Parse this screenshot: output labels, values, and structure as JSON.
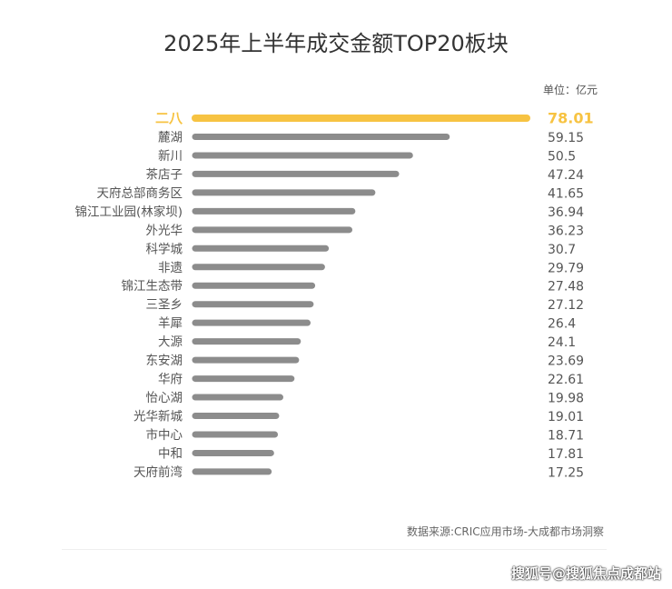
{
  "chart_data": {
    "type": "bar",
    "orientation": "horizontal",
    "title": "2025年上半年成交金额TOP20板块",
    "unit_label": "单位：亿元",
    "categories": [
      "二八",
      "麓湖",
      "新川",
      "茶店子",
      "天府总部商务区",
      "锦江工业园(林家坝)",
      "外光华",
      "科学城",
      "非遗",
      "锦江生态带",
      "三圣乡",
      "羊犀",
      "大源",
      "东安湖",
      "华府",
      "怡心湖",
      "光华新城",
      "市中心",
      "中和",
      "天府前湾"
    ],
    "values": [
      78.01,
      59.15,
      50.5,
      47.24,
      41.65,
      36.94,
      36.23,
      30.7,
      29.79,
      27.48,
      27.12,
      26.4,
      24.1,
      23.69,
      22.61,
      19.98,
      19.01,
      18.71,
      17.81,
      17.25
    ],
    "value_labels": [
      "78.01",
      "59.15",
      "50.5",
      "47.24",
      "41.65",
      "36.94",
      "36.23",
      "30.7",
      "29.79",
      "27.48",
      "27.12",
      "26.4",
      "24.1",
      "23.69",
      "22.61",
      "19.98",
      "19.01",
      "18.71",
      "17.81",
      "17.25"
    ],
    "highlight_index": 0,
    "colors": {
      "highlight": "#F7C342",
      "bar": "#8C8C8C",
      "label": "#555555"
    },
    "grid": false,
    "source": "数据来源:CRIC应用市场-大成都市场洞察"
  },
  "watermark": "搜狐号@搜狐焦点成都站"
}
